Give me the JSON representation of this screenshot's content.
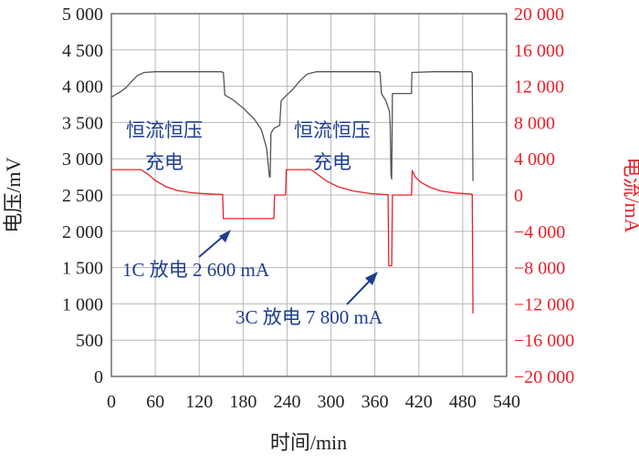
{
  "chart_data": {
    "type": "line",
    "xlabel": "时间/min",
    "ylabel_left": "电压/mV",
    "ylabel_right": "电流/mA",
    "x_ticks": [
      "0",
      "60",
      "120",
      "180",
      "240",
      "300",
      "360",
      "420",
      "480",
      "540"
    ],
    "x_range": [
      0,
      540
    ],
    "y_left_ticks": [
      "0",
      "500",
      "1 000",
      "1 500",
      "2 000",
      "2 500",
      "3 000",
      "3 500",
      "4 000",
      "4 500",
      "5 000"
    ],
    "y_left_range": [
      0,
      5000
    ],
    "y_right_ticks": [
      "−20 000",
      "−16 000",
      "−12 000",
      "−8 000",
      "−4 000",
      "0",
      "4 000",
      "8 000",
      "12 000",
      "16 000",
      "20 000"
    ],
    "y_right_range": [
      -20000,
      20000
    ],
    "grid": true,
    "series": [
      {
        "axis": "left",
        "color": "#4d5a4f",
        "points": [
          [
            0,
            3850
          ],
          [
            5,
            3880
          ],
          [
            12,
            3920
          ],
          [
            20,
            3980
          ],
          [
            28,
            4070
          ],
          [
            36,
            4150
          ],
          [
            45,
            4190
          ],
          [
            60,
            4200
          ],
          [
            90,
            4200
          ],
          [
            120,
            4200
          ],
          [
            150,
            4200
          ],
          [
            153,
            4190
          ],
          [
            155,
            3880
          ],
          [
            165,
            3820
          ],
          [
            180,
            3700
          ],
          [
            195,
            3550
          ],
          [
            205,
            3400
          ],
          [
            212,
            3150
          ],
          [
            216,
            2750
          ],
          [
            217,
            2750
          ],
          [
            218,
            3350
          ],
          [
            222,
            3420
          ],
          [
            228,
            3450
          ],
          [
            230,
            3460
          ],
          [
            232,
            3800
          ],
          [
            238,
            3860
          ],
          [
            248,
            3960
          ],
          [
            258,
            4080
          ],
          [
            268,
            4170
          ],
          [
            280,
            4200
          ],
          [
            310,
            4200
          ],
          [
            340,
            4200
          ],
          [
            365,
            4200
          ],
          [
            367,
            4190
          ],
          [
            369,
            3900
          ],
          [
            375,
            3800
          ],
          [
            380,
            3650
          ],
          [
            381,
            3450
          ],
          [
            382,
            2780
          ],
          [
            383,
            2720
          ],
          [
            384,
            3900
          ],
          [
            410,
            3900
          ],
          [
            410.5,
            4190
          ],
          [
            440,
            4200
          ],
          [
            480,
            4200
          ],
          [
            492,
            4200
          ],
          [
            493,
            4180
          ],
          [
            494,
            2700
          ]
        ]
      },
      {
        "axis": "right",
        "color": "#e8202a",
        "points": [
          [
            0,
            2800
          ],
          [
            40,
            2800
          ],
          [
            50,
            2300
          ],
          [
            60,
            1600
          ],
          [
            75,
            900
          ],
          [
            90,
            500
          ],
          [
            110,
            250
          ],
          [
            130,
            130
          ],
          [
            152,
            60
          ],
          [
            153,
            -2600
          ],
          [
            222,
            -2600
          ],
          [
            223,
            0
          ],
          [
            238,
            0
          ],
          [
            239,
            2800
          ],
          [
            273,
            2800
          ],
          [
            283,
            2200
          ],
          [
            295,
            1500
          ],
          [
            310,
            900
          ],
          [
            330,
            450
          ],
          [
            355,
            150
          ],
          [
            378,
            40
          ],
          [
            379,
            -7800
          ],
          [
            383,
            -7800
          ],
          [
            384,
            0
          ],
          [
            410,
            0
          ],
          [
            411,
            2700
          ],
          [
            415,
            2000
          ],
          [
            423,
            1400
          ],
          [
            435,
            850
          ],
          [
            450,
            450
          ],
          [
            470,
            220
          ],
          [
            493,
            100
          ],
          [
            494,
            -13000
          ]
        ]
      }
    ],
    "annotations": [
      {
        "text": "恒流恒压"
      },
      {
        "text": "充电"
      },
      {
        "text": "恒流恒压"
      },
      {
        "text": "充电"
      },
      {
        "text": "1C 放电 2 600 mA"
      },
      {
        "text": "3C 放电 7 800 mA"
      }
    ]
  },
  "colors": {
    "voltage": "#4d5a4f",
    "current": "#e8202a",
    "grid": "#b8b8b8",
    "annotation": "#1f3f8f"
  }
}
